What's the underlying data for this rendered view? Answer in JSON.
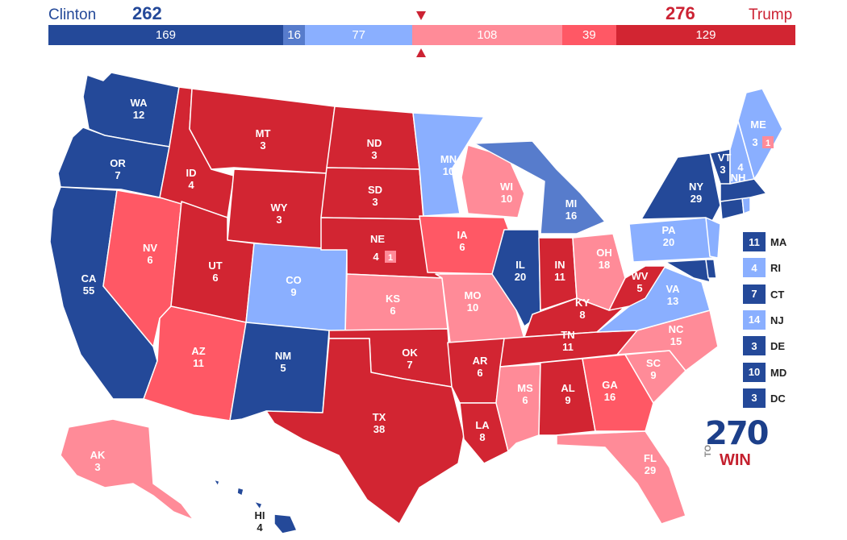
{
  "header": {
    "left_candidate": "Clinton",
    "left_total": "262",
    "right_candidate": "Trump",
    "right_total": "276",
    "segments": [
      {
        "label": "169",
        "value": 169,
        "color": "#244999"
      },
      {
        "label": "16",
        "value": 16,
        "color": "#577ccc"
      },
      {
        "label": "77",
        "value": 77,
        "color": "#8aafff"
      },
      {
        "label": "108",
        "value": 108,
        "color": "#ff8b98"
      },
      {
        "label": "39",
        "value": 39,
        "color": "#ff5865"
      },
      {
        "label": "129",
        "value": 129,
        "color": "#d22532"
      }
    ],
    "marker_color": "#cc2233"
  },
  "colors": {
    "safe_d": "#244999",
    "likely_d": "#577ccc",
    "lean_d": "#8aafff",
    "lean_r": "#ff8b98",
    "likely_r": "#ff5865",
    "safe_r": "#d22532"
  },
  "states": {
    "WA": {
      "abbr": "WA",
      "ev": "12"
    },
    "OR": {
      "abbr": "OR",
      "ev": "7"
    },
    "CA": {
      "abbr": "CA",
      "ev": "55"
    },
    "NV": {
      "abbr": "NV",
      "ev": "6"
    },
    "ID": {
      "abbr": "ID",
      "ev": "4"
    },
    "MT": {
      "abbr": "MT",
      "ev": "3"
    },
    "WY": {
      "abbr": "WY",
      "ev": "3"
    },
    "UT": {
      "abbr": "UT",
      "ev": "6"
    },
    "AZ": {
      "abbr": "AZ",
      "ev": "11"
    },
    "CO": {
      "abbr": "CO",
      "ev": "9"
    },
    "NM": {
      "abbr": "NM",
      "ev": "5"
    },
    "ND": {
      "abbr": "ND",
      "ev": "3"
    },
    "SD": {
      "abbr": "SD",
      "ev": "3"
    },
    "NE": {
      "abbr": "NE",
      "ev": "4",
      "extra": "1"
    },
    "KS": {
      "abbr": "KS",
      "ev": "6"
    },
    "OK": {
      "abbr": "OK",
      "ev": "7"
    },
    "TX": {
      "abbr": "TX",
      "ev": "38"
    },
    "MN": {
      "abbr": "MN",
      "ev": "10"
    },
    "IA": {
      "abbr": "IA",
      "ev": "6"
    },
    "MO": {
      "abbr": "MO",
      "ev": "10"
    },
    "AR": {
      "abbr": "AR",
      "ev": "6"
    },
    "LA": {
      "abbr": "LA",
      "ev": "8"
    },
    "WI": {
      "abbr": "WI",
      "ev": "10"
    },
    "IL": {
      "abbr": "IL",
      "ev": "20"
    },
    "MI": {
      "abbr": "MI",
      "ev": "16"
    },
    "IN": {
      "abbr": "IN",
      "ev": "11"
    },
    "OH": {
      "abbr": "OH",
      "ev": "18"
    },
    "KY": {
      "abbr": "KY",
      "ev": "8"
    },
    "TN": {
      "abbr": "TN",
      "ev": "11"
    },
    "MS": {
      "abbr": "MS",
      "ev": "6"
    },
    "AL": {
      "abbr": "AL",
      "ev": "9"
    },
    "GA": {
      "abbr": "GA",
      "ev": "16"
    },
    "FL": {
      "abbr": "FL",
      "ev": "29"
    },
    "SC": {
      "abbr": "SC",
      "ev": "9"
    },
    "NC": {
      "abbr": "NC",
      "ev": "15"
    },
    "VA": {
      "abbr": "VA",
      "ev": "13"
    },
    "WV": {
      "abbr": "WV",
      "ev": "5"
    },
    "PA": {
      "abbr": "PA",
      "ev": "20"
    },
    "NY": {
      "abbr": "NY",
      "ev": "29"
    },
    "VT": {
      "abbr": "VT",
      "ev": "3"
    },
    "NH": {
      "abbr": "NH",
      "ev": "4"
    },
    "ME": {
      "abbr": "ME",
      "ev": "3",
      "extra": "1"
    },
    "AK": {
      "abbr": "AK",
      "ev": "3"
    },
    "HI": {
      "abbr": "HI",
      "ev": "4"
    }
  },
  "small_states": [
    {
      "ev": "11",
      "abbr": "MA",
      "color": "#244999"
    },
    {
      "ev": "4",
      "abbr": "RI",
      "color": "#8aafff"
    },
    {
      "ev": "7",
      "abbr": "CT",
      "color": "#244999"
    },
    {
      "ev": "14",
      "abbr": "NJ",
      "color": "#8aafff"
    },
    {
      "ev": "3",
      "abbr": "DE",
      "color": "#244999"
    },
    {
      "ev": "10",
      "abbr": "MD",
      "color": "#244999"
    },
    {
      "ev": "3",
      "abbr": "DC",
      "color": "#244999"
    }
  ],
  "logo": {
    "number": "270",
    "to": "TO",
    "win": "WIN"
  }
}
